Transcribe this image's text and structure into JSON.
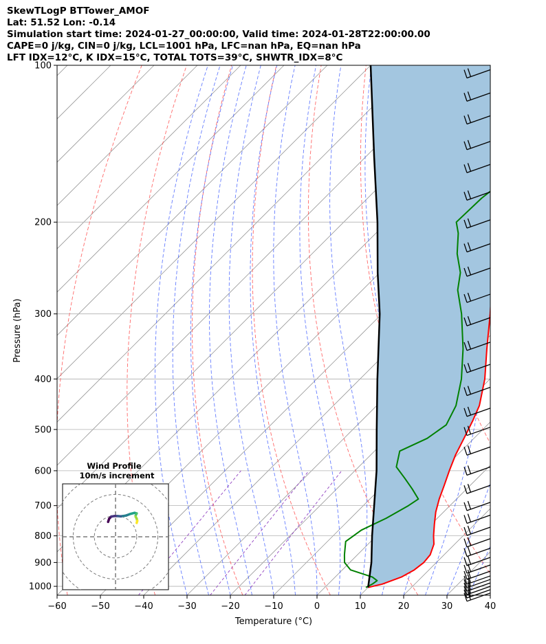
{
  "header": {
    "line1": "SkewTLogP BTTower_AMOF",
    "line2": "Lat: 51.52   Lon: -0.14",
    "line3": "Simulation start time: 2024-01-27_00:00:00, Valid time: 2024-01-28T22:00:00.00",
    "line4": "CAPE=0 j/kg, CIN=0 j/kg, LCL=1001 hPa, LFC=nan hPa, EQ=nan hPa",
    "line5": "LFT IDX=12°C, K IDX=15°C, TOTAL TOTS=39°C, SHWTR_IDX=8°C"
  },
  "colors": {
    "temperature": "#ff0000",
    "dewpoint": "#008000",
    "parcel": "#000000",
    "cape_fill": "#a3c6e0",
    "dry_adiabat": "#ff4d4d",
    "moist_adiabat": "#3050ff",
    "mixing_ratio": "#9040c0",
    "isotherm": "#999999"
  },
  "chart_data": [
    {
      "type": "line",
      "subtype": "skew-t log-p",
      "xlabel": "Temperature (°C)",
      "ylabel": "Pressure (hPa)",
      "xlim": [
        -60,
        40
      ],
      "ylim": [
        1040,
        100
      ],
      "y_scale": "log",
      "grid": true,
      "x_ticks": [
        "−60",
        "−50",
        "−40",
        "−30",
        "−20",
        "−10",
        "0",
        "10",
        "20",
        "30",
        "40"
      ],
      "y_ticks": [
        "1000",
        "900",
        "800",
        "700",
        "600",
        "500",
        "400",
        "300",
        "200",
        "100"
      ],
      "series": [
        {
          "role": "temperature",
          "points": [
            [
              1005,
              10
            ],
            [
              990,
              12.5
            ],
            [
              960,
              15.3
            ],
            [
              930,
              16.6
            ],
            [
              900,
              17.1
            ],
            [
              870,
              16.8
            ],
            [
              830,
              15.2
            ],
            [
              800,
              13.2
            ],
            [
              760,
              10.7
            ],
            [
              720,
              8.2
            ],
            [
              680,
              6.0
            ],
            [
              640,
              4.0
            ],
            [
              600,
              1.8
            ],
            [
              560,
              -0.4
            ],
            [
              520,
              -2.3
            ],
            [
              480,
              -4.4
            ],
            [
              450,
              -6.3
            ],
            [
              400,
              -11.2
            ],
            [
              350,
              -17.7
            ],
            [
              300,
              -25.0
            ],
            [
              260,
              -32.0
            ],
            [
              230,
              -38.5
            ],
            [
              210,
              -43.5
            ],
            [
              200,
              -45.2
            ],
            [
              185,
              -45.0
            ],
            [
              170,
              -45.0
            ],
            [
              155,
              -47.0
            ],
            [
              140,
              -51.0
            ],
            [
              130,
              -54.8
            ],
            [
              120,
              -58.4
            ],
            [
              110,
              -62.7
            ],
            [
              100,
              -66.8
            ]
          ]
        },
        {
          "role": "dewpoint",
          "points": [
            [
              1005,
              9.5
            ],
            [
              990,
              10.2
            ],
            [
              975,
              10.5
            ],
            [
              960,
              8.6
            ],
            [
              930,
              1.9
            ],
            [
              900,
              -1.2
            ],
            [
              870,
              -3.0
            ],
            [
              820,
              -5.8
            ],
            [
              780,
              -4.8
            ],
            [
              740,
              -1.8
            ],
            [
              700,
              0.4
            ],
            [
              680,
              1.2
            ],
            [
              650,
              -2.6
            ],
            [
              620,
              -6.8
            ],
            [
              590,
              -11.3
            ],
            [
              550,
              -14.2
            ],
            [
              520,
              -10.8
            ],
            [
              490,
              -9.5
            ],
            [
              450,
              -11.7
            ],
            [
              400,
              -16.6
            ],
            [
              350,
              -23.2
            ],
            [
              300,
              -31.6
            ],
            [
              270,
              -38.0
            ],
            [
              250,
              -41.4
            ],
            [
              230,
              -46.5
            ],
            [
              210,
              -51.0
            ],
            [
              200,
              -54.0
            ],
            [
              180,
              -53.7
            ],
            [
              165,
              -52.5
            ],
            [
              155,
              -54.5
            ],
            [
              145,
              -59.0
            ],
            [
              135,
              -65.0
            ],
            [
              125,
              -67.2
            ],
            [
              115,
              -70.5
            ],
            [
              100,
              -77.5
            ]
          ]
        },
        {
          "role": "parcel",
          "points": [
            [
              1005,
              10
            ],
            [
              900,
              5.0
            ],
            [
              800,
              -1.0
            ],
            [
              700,
              -7.5
            ],
            [
              600,
              -15.0
            ],
            [
              500,
              -24.5
            ],
            [
              400,
              -36.0
            ],
            [
              300,
              -50.5
            ],
            [
              250,
              -60.5
            ],
            [
              200,
              -72.2
            ],
            [
              150,
              -88.0
            ],
            [
              100,
              -110.0
            ]
          ]
        }
      ],
      "wind_barbs": {
        "pressures_hpa": [
          1030,
          1015,
          1000,
          985,
          970,
          955,
          935,
          910,
          880,
          845,
          810,
          770,
          730,
          690,
          640,
          590,
          540,
          495,
          455,
          415,
          375,
          340,
          305,
          275,
          245,
          220,
          198,
          175,
          155,
          140,
          125,
          113,
          102
        ],
        "barb_lines": [
          2,
          2,
          2,
          2,
          2,
          2,
          2,
          2,
          2,
          2,
          2,
          2,
          2,
          2,
          2,
          2,
          2,
          2,
          2,
          2,
          2,
          2,
          2,
          2,
          2,
          2,
          2,
          2,
          2,
          2,
          2,
          2,
          2
        ]
      }
    },
    {
      "type": "line",
      "subtype": "hodograph",
      "title": "Wind Profile",
      "subtitle": "10m/s increment",
      "rings_ms": [
        10,
        20,
        30
      ],
      "lim": [
        -25,
        25
      ],
      "points": [
        [
          -7,
          5
        ],
        [
          -6,
          8
        ],
        [
          -4,
          10
        ],
        [
          -1,
          10.5
        ],
        [
          2,
          10.5
        ],
        [
          5,
          10.2
        ],
        [
          7,
          10.5
        ],
        [
          10,
          11
        ],
        [
          14,
          12.5
        ],
        [
          18,
          13.5
        ],
        [
          20,
          13
        ],
        [
          19,
          11
        ],
        [
          19,
          10
        ],
        [
          20,
          8
        ],
        [
          20.5,
          6
        ],
        [
          20,
          4
        ]
      ]
    }
  ]
}
